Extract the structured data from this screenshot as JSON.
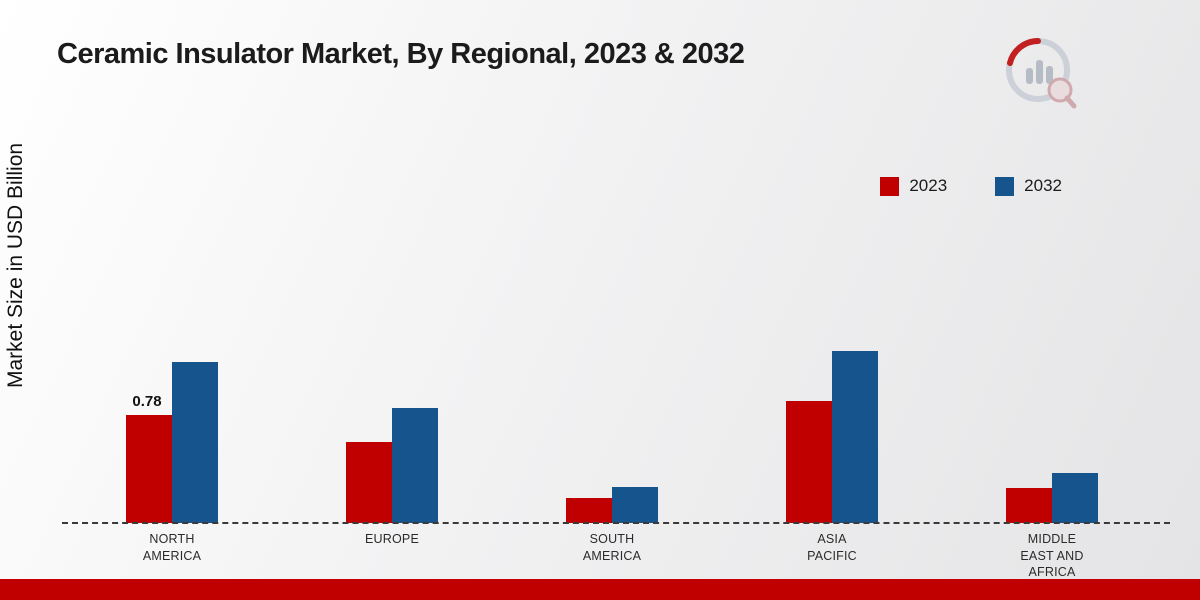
{
  "title": "Ceramic Insulator Market, By Regional, 2023 & 2032",
  "ylabel": "Market Size in USD Billion",
  "colors": {
    "series_2023": "#c00000",
    "series_2032": "#16548e",
    "bottom_band": "#c00000",
    "baseline": "#3a3a3a"
  },
  "legend": {
    "items": [
      {
        "label": "2023",
        "color": "#c00000"
      },
      {
        "label": "2032",
        "color": "#16548e"
      }
    ]
  },
  "chart_data": {
    "type": "bar",
    "title": "Ceramic Insulator Market, By Regional, 2023 & 2032",
    "xlabel": "",
    "ylabel": "Market Size in USD Billion",
    "categories": [
      "NORTH AMERICA",
      "EUROPE",
      "SOUTH AMERICA",
      "ASIA PACIFIC",
      "MIDDLE EAST AND AFRICA"
    ],
    "series": [
      {
        "name": "2023",
        "color": "#c00000",
        "values": [
          0.78,
          0.58,
          0.18,
          0.88,
          0.25
        ],
        "value_labels": [
          "0.78",
          "",
          "",
          "",
          ""
        ]
      },
      {
        "name": "2032",
        "color": "#16548e",
        "values": [
          1.16,
          0.83,
          0.26,
          1.24,
          0.36
        ],
        "value_labels": [
          "",
          "",
          "",
          "",
          ""
        ]
      }
    ],
    "ylim": [
      0,
      1.31
    ],
    "grid": false,
    "baseline_style": "dashed",
    "legend_position": "top-right",
    "annotations": [
      {
        "series": "2023",
        "category": "NORTH AMERICA",
        "text": "0.78"
      }
    ]
  }
}
